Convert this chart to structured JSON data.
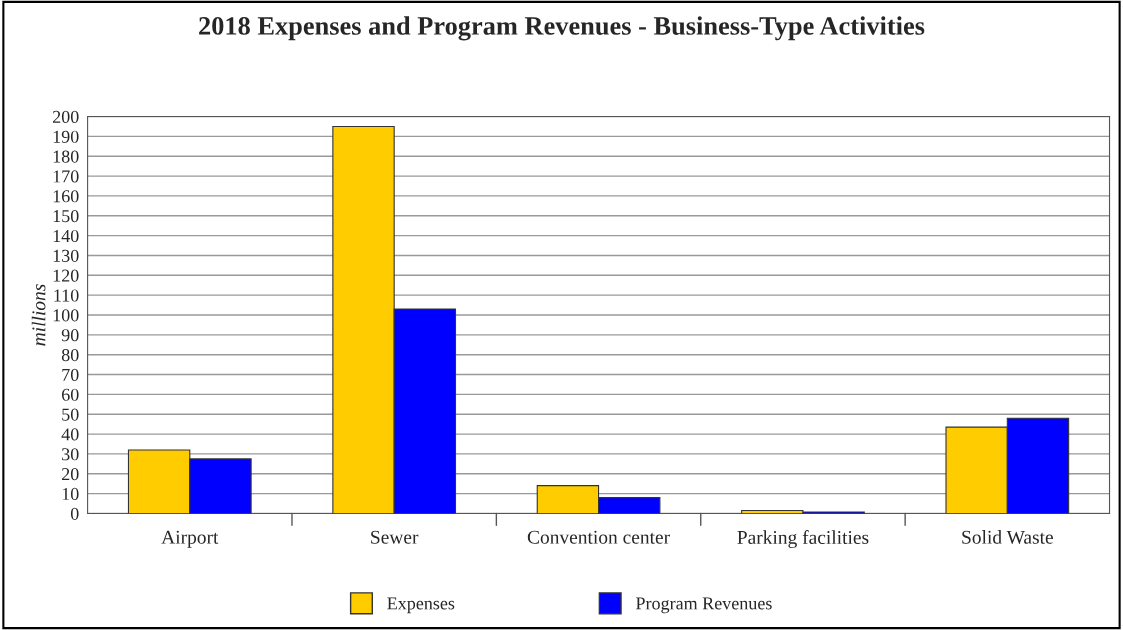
{
  "chart_data": {
    "type": "bar",
    "title": "2018 Expenses and Program Revenues - Business-Type Activities",
    "ylabel": "millions",
    "categories": [
      "Airport",
      "Sewer",
      "Convention center",
      "Parking facilities",
      "Solid Waste"
    ],
    "series": [
      {
        "name": "Expenses",
        "color": "#ffcc00",
        "values": [
          32,
          195,
          14,
          1.5,
          43.5
        ]
      },
      {
        "name": "Program Revenues",
        "color": "#0000ff",
        "values": [
          27.5,
          103,
          8,
          0.7,
          48
        ]
      }
    ],
    "ylim": [
      0,
      200
    ],
    "yticks": [
      0,
      10,
      20,
      30,
      40,
      50,
      60,
      70,
      80,
      90,
      100,
      110,
      120,
      130,
      140,
      150,
      160,
      170,
      180,
      190,
      200
    ],
    "grid": "y",
    "legend": "bottom"
  }
}
